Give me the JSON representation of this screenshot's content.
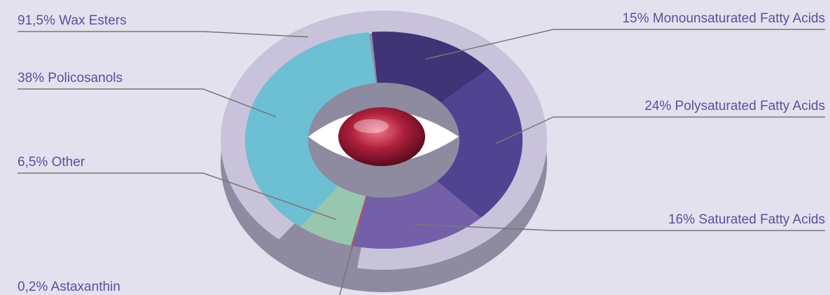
{
  "chart_data": {
    "type": "pie",
    "values": [
      15,
      24,
      16,
      0.2,
      6.5,
      38,
      91.5
    ],
    "value_labels": [
      "15% Monounsaturated Fatty Acids",
      "24% Polysaturated Fatty Acids",
      "16% Saturated Fatty Acids",
      "0,2% Astaxanthin",
      "6,5% Other",
      "38% Policosanols",
      "91,5% Wax Esters"
    ],
    "colors": [
      "#3f3476",
      "#4f4392",
      "#7460a8",
      "#d0454f",
      "#98c7b0",
      "#6dbfd4",
      "#c8c3da"
    ]
  }
}
